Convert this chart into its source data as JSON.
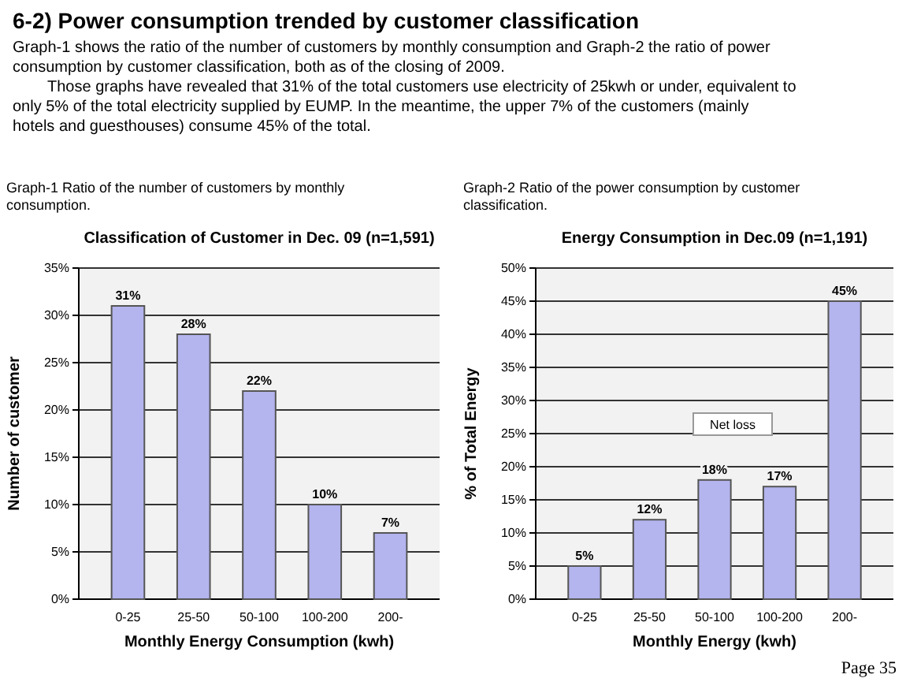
{
  "chart_data": [
    {
      "type": "bar",
      "title": "Classification of Customer in Dec. 09 (n=1,591)",
      "subtitle": "Graph-1 Ratio of the number of customers by monthly consumption.",
      "xlabel": "Monthly Energy Consumption (kwh)",
      "ylabel": "Number of customer",
      "annotations": [
        "6-2) Power consumption trended by customer classification",
        "Graph-1 shows the ratio of the number of customers by monthly consumption and Graph-2 the ratio of power consumption by customer classification, both as of the closing of 2009.",
        "Those graphs have revealed that 31% of the total customers use electricity of 25kwh or under, equivalent to only 5% of the total electricity supplied by EUMP. In the meantime, the upper 7% of the customers (mainly hotels and guesthouses) consume 45% of the total."
      ],
      "categories": [
        "0-25",
        "25-50",
        "50-100",
        "100-200",
        "200-"
      ],
      "values": [
        31,
        28,
        22,
        10,
        7
      ],
      "value_labels": [
        "31%",
        "28%",
        "22%",
        "10%",
        "7%"
      ],
      "color": "#b4b4ee",
      "ylim": [
        0,
        35
      ],
      "yticks": [
        {
          "value": 0,
          "label": "0%"
        },
        {
          "value": 5,
          "label": "5%"
        },
        {
          "value": 10,
          "label": "10%"
        },
        {
          "value": 15,
          "label": "15%"
        },
        {
          "value": 20,
          "label": "20%"
        },
        {
          "value": 25,
          "label": "25%"
        },
        {
          "value": 30,
          "label": "30%"
        },
        {
          "value": 35,
          "label": "35%"
        }
      ],
      "grid": "y"
    },
    {
      "type": "bar",
      "title": "Energy Consumption in Dec.09 (n=1,191)",
      "subtitle": "Graph-2 Ratio of the power consumption by customer classification.",
      "xlabel": "Monthly Energy (kwh)",
      "ylabel": "% of Total Energy",
      "annotations": [
        "Net loss",
        "Page 35"
      ],
      "categories": [
        "0-25",
        "25-50",
        "50-100",
        "100-200",
        "200-"
      ],
      "values": [
        5,
        12,
        18,
        17,
        45
      ],
      "value_labels": [
        "5%",
        "12%",
        "18%",
        "17%",
        "45%"
      ],
      "color": "#b4b4ee",
      "ylim": [
        0,
        50
      ],
      "yticks": [
        {
          "value": 0,
          "label": "0%"
        },
        {
          "value": 5,
          "label": "5%"
        },
        {
          "value": 10,
          "label": "10%"
        },
        {
          "value": 15,
          "label": "15%"
        },
        {
          "value": 20,
          "label": "20%"
        },
        {
          "value": 25,
          "label": "25%"
        },
        {
          "value": 30,
          "label": "30%"
        },
        {
          "value": 35,
          "label": "35%"
        },
        {
          "value": 40,
          "label": "40%"
        },
        {
          "value": 45,
          "label": "45%"
        },
        {
          "value": 50,
          "label": "50%"
        }
      ],
      "grid": "y"
    }
  ]
}
